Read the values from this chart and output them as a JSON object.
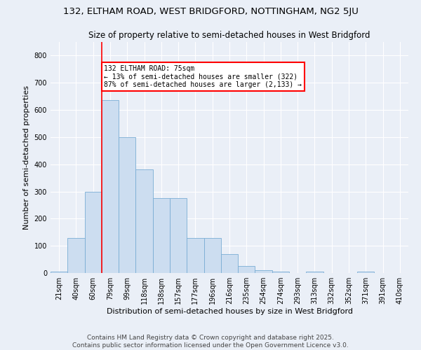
{
  "title1": "132, ELTHAM ROAD, WEST BRIDGFORD, NOTTINGHAM, NG2 5JU",
  "title2": "Size of property relative to semi-detached houses in West Bridgford",
  "xlabel": "Distribution of semi-detached houses by size in West Bridgford",
  "ylabel": "Number of semi-detached properties",
  "bin_labels": [
    "21sqm",
    "40sqm",
    "60sqm",
    "79sqm",
    "99sqm",
    "118sqm",
    "138sqm",
    "157sqm",
    "177sqm",
    "196sqm",
    "216sqm",
    "235sqm",
    "254sqm",
    "274sqm",
    "293sqm",
    "313sqm",
    "332sqm",
    "352sqm",
    "371sqm",
    "391sqm",
    "410sqm"
  ],
  "bin_values": [
    5,
    130,
    300,
    635,
    500,
    380,
    275,
    275,
    130,
    130,
    70,
    25,
    10,
    5,
    0,
    5,
    0,
    0,
    5,
    0,
    0
  ],
  "bar_color": "#ccddf0",
  "bar_edge_color": "#7aadd4",
  "vline_color": "red",
  "annotation_title": "132 ELTHAM ROAD: 75sqm",
  "annotation_line1": "← 13% of semi-detached houses are smaller (322)",
  "annotation_line2": "87% of semi-detached houses are larger (2,133) →",
  "ylim": [
    0,
    850
  ],
  "yticks": [
    0,
    100,
    200,
    300,
    400,
    500,
    600,
    700,
    800
  ],
  "background_color": "#eaeff7",
  "footer": "Contains HM Land Registry data © Crown copyright and database right 2025.\nContains public sector information licensed under the Open Government Licence v3.0.",
  "title1_fontsize": 9.5,
  "title2_fontsize": 8.5,
  "xlabel_fontsize": 8,
  "ylabel_fontsize": 8,
  "tick_fontsize": 7,
  "footer_fontsize": 6.5,
  "annotation_fontsize": 7
}
